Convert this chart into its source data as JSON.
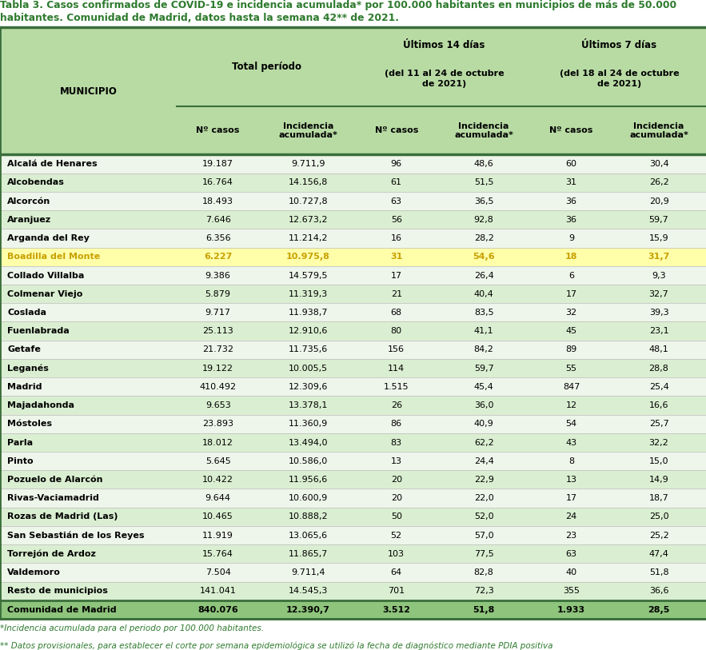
{
  "title_line1": "Tabla 3. Casos confirmados de COVID-19 e incidencia acumulada* por 100.000 habitantes en municipios de más de 50.000",
  "title_line2": "habitantes. Comunidad de Madrid, datos hasta la semana 42** de 2021.",
  "title_color": "#2d7a2d",
  "header_bg": "#b8dba4",
  "row_light": "#eef5ea",
  "row_dark": "#daefd1",
  "highlight_row": "#ffffaa",
  "highlight_text": "#c8a000",
  "total_row_bg": "#8ec47c",
  "footnote_color": "#2d7a2d",
  "border_color": "#3a6e3a",
  "text_color": "#000000",
  "rows": [
    [
      "Alcalá de Henares",
      "19.187",
      "9.711,9",
      "96",
      "48,6",
      "60",
      "30,4"
    ],
    [
      "Alcobendas",
      "16.764",
      "14.156,8",
      "61",
      "51,5",
      "31",
      "26,2"
    ],
    [
      "Alcorcón",
      "18.493",
      "10.727,8",
      "63",
      "36,5",
      "36",
      "20,9"
    ],
    [
      "Aranjuez",
      "7.646",
      "12.673,2",
      "56",
      "92,8",
      "36",
      "59,7"
    ],
    [
      "Arganda del Rey",
      "6.356",
      "11.214,2",
      "16",
      "28,2",
      "9",
      "15,9"
    ],
    [
      "Boadilla del Monte",
      "6.227",
      "10.975,8",
      "31",
      "54,6",
      "18",
      "31,7"
    ],
    [
      "Collado Villalba",
      "9.386",
      "14.579,5",
      "17",
      "26,4",
      "6",
      "9,3"
    ],
    [
      "Colmenar Viejo",
      "5.879",
      "11.319,3",
      "21",
      "40,4",
      "17",
      "32,7"
    ],
    [
      "Coslada",
      "9.717",
      "11.938,7",
      "68",
      "83,5",
      "32",
      "39,3"
    ],
    [
      "Fuenlabrada",
      "25.113",
      "12.910,6",
      "80",
      "41,1",
      "45",
      "23,1"
    ],
    [
      "Getafe",
      "21.732",
      "11.735,6",
      "156",
      "84,2",
      "89",
      "48,1"
    ],
    [
      "Leganés",
      "19.122",
      "10.005,5",
      "114",
      "59,7",
      "55",
      "28,8"
    ],
    [
      "Madrid",
      "410.492",
      "12.309,6",
      "1.515",
      "45,4",
      "847",
      "25,4"
    ],
    [
      "Majadahonda",
      "9.653",
      "13.378,1",
      "26",
      "36,0",
      "12",
      "16,6"
    ],
    [
      "Móstoles",
      "23.893",
      "11.360,9",
      "86",
      "40,9",
      "54",
      "25,7"
    ],
    [
      "Parla",
      "18.012",
      "13.494,0",
      "83",
      "62,2",
      "43",
      "32,2"
    ],
    [
      "Pinto",
      "5.645",
      "10.586,0",
      "13",
      "24,4",
      "8",
      "15,0"
    ],
    [
      "Pozuelo de Alarcón",
      "10.422",
      "11.956,6",
      "20",
      "22,9",
      "13",
      "14,9"
    ],
    [
      "Rivas-Vaciamadrid",
      "9.644",
      "10.600,9",
      "20",
      "22,0",
      "17",
      "18,7"
    ],
    [
      "Rozas de Madrid (Las)",
      "10.465",
      "10.888,2",
      "50",
      "52,0",
      "24",
      "25,0"
    ],
    [
      "San Sebastián de los Reyes",
      "11.919",
      "13.065,6",
      "52",
      "57,0",
      "23",
      "25,2"
    ],
    [
      "Torrejón de Ardoz",
      "15.764",
      "11.865,7",
      "103",
      "77,5",
      "63",
      "47,4"
    ],
    [
      "Valdemoro",
      "7.504",
      "9.711,4",
      "64",
      "82,8",
      "40",
      "51,8"
    ],
    [
      "Resto de municipios",
      "141.041",
      "14.545,3",
      "701",
      "72,3",
      "355",
      "36,6"
    ]
  ],
  "highlight_row_idx": 5,
  "total_row": [
    "Comunidad de Madrid",
    "840.076",
    "12.390,7",
    "3.512",
    "51,8",
    "1.933",
    "28,5"
  ],
  "footnote1": "*Incidencia acumulada para el periodo por 100.000 habitantes.",
  "footnote2": "** Datos provisionales, para establecer el corte por semana epidemiológica se utilizó la fecha de diagnóstico mediante PDIA positiva"
}
